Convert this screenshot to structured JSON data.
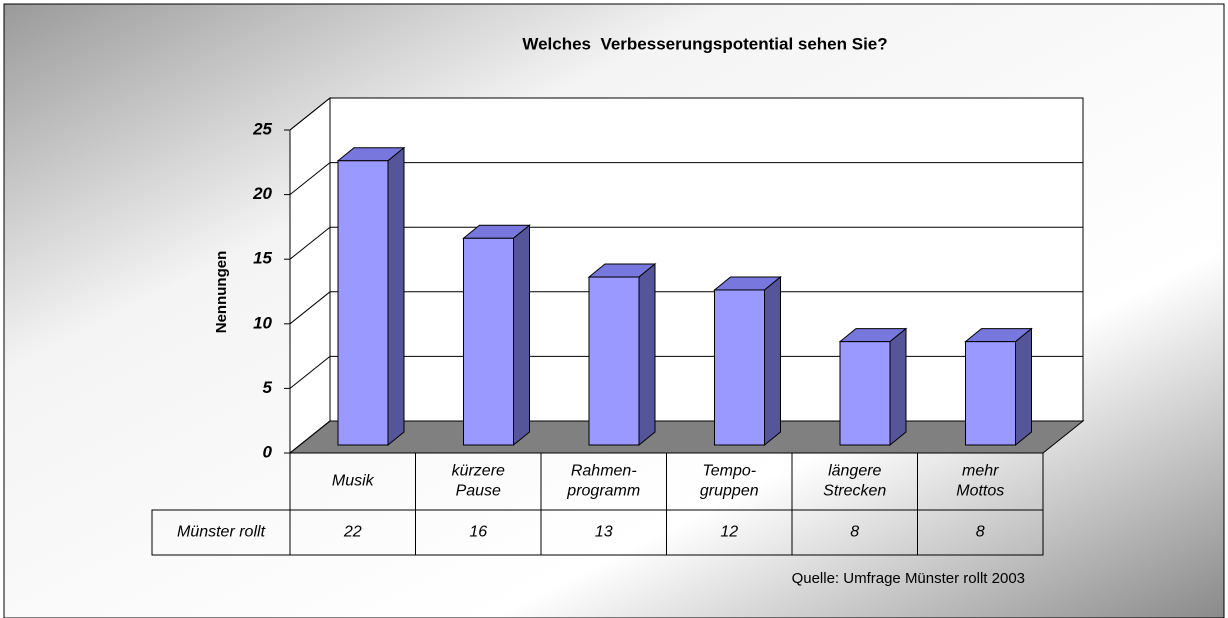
{
  "chart_data": {
    "type": "bar3d",
    "title": "Welches  Verbesserungspotential sehen Sie?",
    "y_label": "Nennungen",
    "categories": [
      [
        "Musik"
      ],
      [
        "kürzere",
        "Pause"
      ],
      [
        "Rahmen-",
        "programm"
      ],
      [
        "Tempo-",
        "gruppen"
      ],
      [
        "längere",
        "Strecken"
      ],
      [
        "mehr",
        "Mottos"
      ]
    ],
    "series": [
      {
        "name": "Münster rollt",
        "color": "#9999ff",
        "values": [
          22,
          16,
          13,
          12,
          8,
          8
        ]
      }
    ],
    "ylim": [
      0,
      25
    ],
    "yticks": [
      0,
      5,
      10,
      15,
      20,
      25
    ],
    "grid": true,
    "note": "Quelle: Umfrage Münster rollt 2003"
  }
}
